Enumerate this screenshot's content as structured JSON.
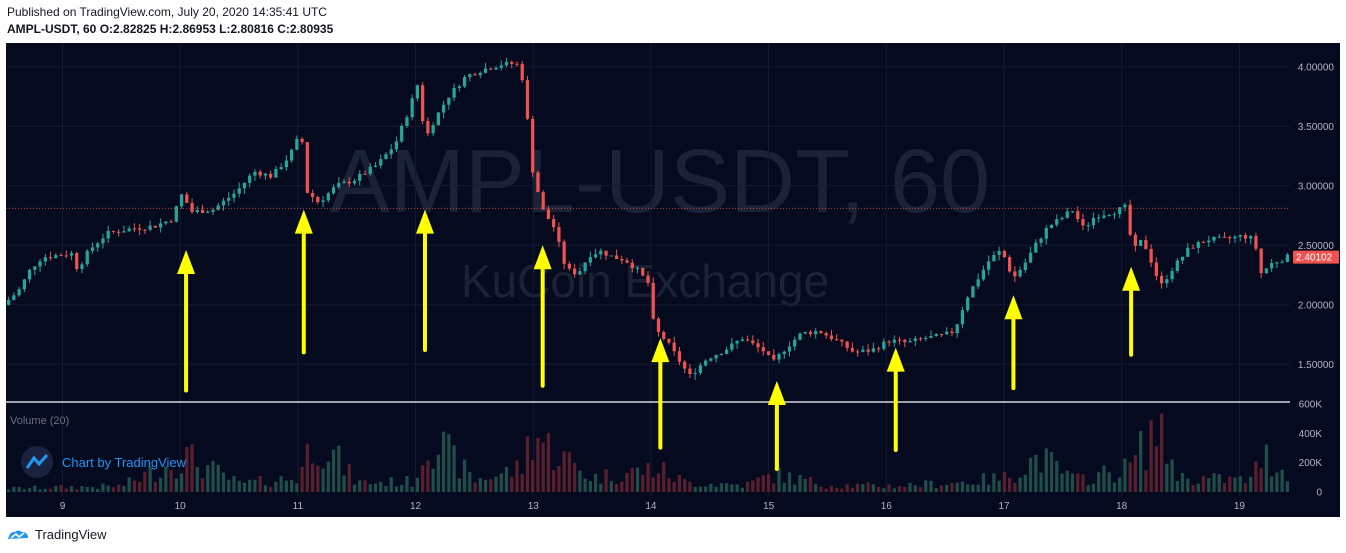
{
  "header": {
    "published": "Published on TradingView.com, July 20, 2020 14:35:41 UTC",
    "symbol_line": "AMPL-USDT, 60",
    "ohlc_prefix": [
      {
        "label": "O:",
        "value": "2.82825"
      },
      {
        "label": "H:",
        "value": "2.86953"
      },
      {
        "label": "L:",
        "value": "2.80816"
      },
      {
        "label": "C:",
        "value": "2.80935"
      }
    ]
  },
  "watermark": {
    "symbol": "AMPL-USDT, 60",
    "exchange": "KuCoin Exchange"
  },
  "volume_label": "Volume (20)",
  "chart_by_label": "Chart by TradingView",
  "footer_brand": "TradingView",
  "current_price_label": "2.40102",
  "colors": {
    "background": "#050a1f",
    "up": "#26a69a",
    "down": "#ef5350",
    "vol_up": "#1f4e4a",
    "vol_down": "#5a1f2c",
    "arrow": "#ffff00",
    "price_line": "#ef5350",
    "axis_text": "#b2b5be"
  },
  "chart_data": {
    "type": "candlestick",
    "title": "AMPL-USDT, 60",
    "y_axis": {
      "ticks": [
        "1.50000",
        "2.00000",
        "2.50000",
        "3.00000",
        "3.50000",
        "4.00000"
      ],
      "range": [
        1.2,
        4.2
      ]
    },
    "volume_axis": {
      "ticks": [
        "0",
        "200K",
        "400K",
        "600K"
      ],
      "range": [
        0,
        600000
      ]
    },
    "x_axis": {
      "ticks": [
        "9",
        "10",
        "11",
        "12",
        "13",
        "14",
        "15",
        "16",
        "17",
        "18",
        "19"
      ],
      "range": [
        8.52,
        19.43
      ]
    },
    "horizontal_line": 2.81,
    "price_path": [
      [
        8.52,
        2.0
      ],
      [
        8.65,
        2.12
      ],
      [
        8.75,
        2.3
      ],
      [
        8.85,
        2.4
      ],
      [
        9.0,
        2.42
      ],
      [
        9.1,
        2.43
      ],
      [
        9.15,
        2.3
      ],
      [
        9.25,
        2.46
      ],
      [
        9.4,
        2.6
      ],
      [
        9.6,
        2.64
      ],
      [
        9.8,
        2.66
      ],
      [
        9.95,
        2.72
      ],
      [
        10.05,
        2.96
      ],
      [
        10.1,
        2.78
      ],
      [
        10.3,
        2.8
      ],
      [
        10.5,
        2.95
      ],
      [
        10.65,
        3.12
      ],
      [
        10.8,
        3.08
      ],
      [
        10.95,
        3.25
      ],
      [
        11.05,
        3.45
      ],
      [
        11.1,
        2.95
      ],
      [
        11.2,
        2.86
      ],
      [
        11.35,
        3.0
      ],
      [
        11.5,
        3.05
      ],
      [
        11.7,
        3.18
      ],
      [
        11.85,
        3.35
      ],
      [
        11.95,
        3.6
      ],
      [
        12.05,
        3.88
      ],
      [
        12.1,
        3.38
      ],
      [
        12.18,
        3.55
      ],
      [
        12.3,
        3.75
      ],
      [
        12.45,
        3.92
      ],
      [
        12.6,
        3.98
      ],
      [
        12.75,
        4.02
      ],
      [
        12.88,
        4.03
      ],
      [
        12.95,
        3.85
      ],
      [
        13.0,
        3.2
      ],
      [
        13.1,
        2.8
      ],
      [
        13.2,
        2.65
      ],
      [
        13.3,
        2.3
      ],
      [
        13.4,
        2.26
      ],
      [
        13.5,
        2.42
      ],
      [
        13.6,
        2.45
      ],
      [
        13.7,
        2.4
      ],
      [
        13.8,
        2.38
      ],
      [
        13.9,
        2.3
      ],
      [
        14.0,
        2.18
      ],
      [
        14.05,
        1.8
      ],
      [
        14.15,
        1.7
      ],
      [
        14.25,
        1.55
      ],
      [
        14.35,
        1.4
      ],
      [
        14.5,
        1.55
      ],
      [
        14.65,
        1.62
      ],
      [
        14.8,
        1.72
      ],
      [
        15.0,
        1.6
      ],
      [
        15.05,
        1.5
      ],
      [
        15.15,
        1.62
      ],
      [
        15.3,
        1.76
      ],
      [
        15.45,
        1.78
      ],
      [
        15.6,
        1.7
      ],
      [
        15.75,
        1.6
      ],
      [
        15.9,
        1.62
      ],
      [
        16.05,
        1.7
      ],
      [
        16.2,
        1.68
      ],
      [
        16.35,
        1.72
      ],
      [
        16.5,
        1.74
      ],
      [
        16.6,
        1.78
      ],
      [
        16.7,
        2.05
      ],
      [
        16.8,
        2.22
      ],
      [
        16.9,
        2.38
      ],
      [
        17.0,
        2.46
      ],
      [
        17.1,
        2.22
      ],
      [
        17.2,
        2.35
      ],
      [
        17.3,
        2.52
      ],
      [
        17.4,
        2.66
      ],
      [
        17.5,
        2.72
      ],
      [
        17.6,
        2.8
      ],
      [
        17.7,
        2.64
      ],
      [
        17.8,
        2.75
      ],
      [
        17.95,
        2.78
      ],
      [
        18.05,
        2.82
      ],
      [
        18.12,
        2.45
      ],
      [
        18.2,
        2.55
      ],
      [
        18.3,
        2.3
      ],
      [
        18.35,
        2.15
      ],
      [
        18.45,
        2.3
      ],
      [
        18.6,
        2.48
      ],
      [
        18.75,
        2.55
      ],
      [
        18.9,
        2.55
      ],
      [
        19.05,
        2.58
      ],
      [
        19.15,
        2.55
      ],
      [
        19.2,
        2.26
      ],
      [
        19.3,
        2.35
      ],
      [
        19.43,
        2.4
      ]
    ],
    "volume_path": [
      [
        8.52,
        30000
      ],
      [
        9.0,
        40000
      ],
      [
        9.5,
        50000
      ],
      [
        10.05,
        300000
      ],
      [
        10.5,
        70000
      ],
      [
        11.0,
        120000
      ],
      [
        11.15,
        500000
      ],
      [
        11.5,
        80000
      ],
      [
        12.0,
        90000
      ],
      [
        12.1,
        500000
      ],
      [
        12.5,
        100000
      ],
      [
        12.9,
        200000
      ],
      [
        13.0,
        550000
      ],
      [
        13.1,
        400000
      ],
      [
        13.5,
        120000
      ],
      [
        14.05,
        200000
      ],
      [
        14.3,
        80000
      ],
      [
        14.8,
        60000
      ],
      [
        15.05,
        150000
      ],
      [
        15.5,
        60000
      ],
      [
        16.0,
        50000
      ],
      [
        16.6,
        80000
      ],
      [
        17.0,
        120000
      ],
      [
        17.3,
        300000
      ],
      [
        17.6,
        100000
      ],
      [
        18.05,
        200000
      ],
      [
        18.2,
        400000
      ],
      [
        18.28,
        560000
      ],
      [
        18.5,
        120000
      ],
      [
        19.1,
        100000
      ],
      [
        19.2,
        320000
      ],
      [
        19.43,
        130000
      ]
    ],
    "annotations": [
      {
        "type": "arrow",
        "direction": "up",
        "x": 10.05,
        "y_tail": 1.28,
        "y_head": 2.46
      },
      {
        "type": "arrow",
        "direction": "up",
        "x": 11.05,
        "y_tail": 1.6,
        "y_head": 2.8
      },
      {
        "type": "arrow",
        "direction": "up",
        "x": 12.08,
        "y_tail": 1.62,
        "y_head": 2.8
      },
      {
        "type": "arrow",
        "direction": "up",
        "x": 13.08,
        "y_tail": 1.32,
        "y_head": 2.5
      },
      {
        "type": "arrow",
        "direction": "up",
        "x": 14.08,
        "y_tail": 0.8,
        "y_head": 1.72
      },
      {
        "type": "arrow",
        "direction": "up",
        "x": 15.07,
        "y_tail": 0.62,
        "y_head": 1.36
      },
      {
        "type": "arrow",
        "direction": "up",
        "x": 16.08,
        "y_tail": 0.78,
        "y_head": 1.64
      },
      {
        "type": "arrow",
        "direction": "up",
        "x": 17.08,
        "y_tail": 1.3,
        "y_head": 2.08
      },
      {
        "type": "arrow",
        "direction": "up",
        "x": 18.08,
        "y_tail": 1.58,
        "y_head": 2.32
      }
    ]
  }
}
